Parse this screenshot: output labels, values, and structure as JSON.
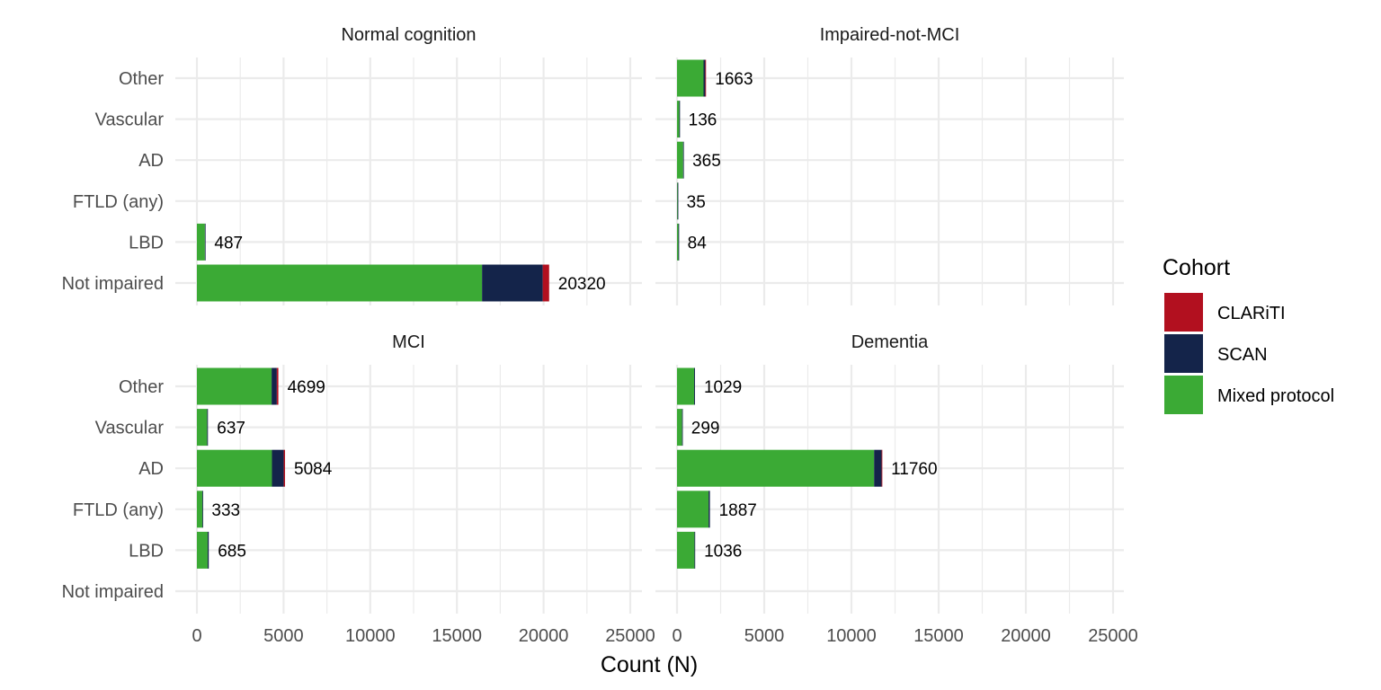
{
  "chart_data": {
    "type": "bar",
    "orientation": "horizontal",
    "stacked": true,
    "xlabel": "Count (N)",
    "ylabel": "",
    "xlim": [
      0,
      25000
    ],
    "x_ticks": [
      0,
      5000,
      10000,
      15000,
      20000,
      25000
    ],
    "grid": true,
    "legend": {
      "title": "Cohort",
      "position": "right",
      "entries": [
        {
          "name": "CLARiTI",
          "color": "#B2101F"
        },
        {
          "name": "SCAN",
          "color": "#14244A"
        },
        {
          "name": "Mixed protocol",
          "color": "#3BAA35"
        }
      ]
    },
    "categories": [
      "Other",
      "Vascular",
      "AD",
      "FTLD (any)",
      "LBD",
      "Not impaired"
    ],
    "panels": [
      {
        "title": "Normal cognition",
        "bars": [
          {
            "category": "Other",
            "label": "",
            "segments": [
              0,
              0,
              0
            ]
          },
          {
            "category": "Vascular",
            "label": "",
            "segments": [
              0,
              0,
              0
            ]
          },
          {
            "category": "AD",
            "label": "",
            "segments": [
              0,
              0,
              0
            ]
          },
          {
            "category": "FTLD (any)",
            "label": "",
            "segments": [
              0,
              0,
              0
            ]
          },
          {
            "category": "LBD",
            "label": "487",
            "segments": [
              460,
              27,
              0
            ]
          },
          {
            "category": "Not impaired",
            "label": "20320",
            "segments": [
              16450,
              3500,
              370
            ]
          }
        ]
      },
      {
        "title": "Impaired-not-MCI",
        "bars": [
          {
            "category": "Other",
            "label": "1663",
            "segments": [
              1520,
              100,
              43
            ]
          },
          {
            "category": "Vascular",
            "label": "136",
            "segments": [
              130,
              6,
              0
            ]
          },
          {
            "category": "AD",
            "label": "365",
            "segments": [
              350,
              15,
              0
            ]
          },
          {
            "category": "FTLD (any)",
            "label": "35",
            "segments": [
              33,
              2,
              0
            ]
          },
          {
            "category": "LBD",
            "label": "84",
            "segments": [
              80,
              4,
              0
            ]
          },
          {
            "category": "Not impaired",
            "label": "",
            "segments": [
              0,
              0,
              0
            ]
          }
        ]
      },
      {
        "title": "MCI",
        "bars": [
          {
            "category": "Other",
            "label": "4699",
            "segments": [
              4310,
              300,
              89
            ]
          },
          {
            "category": "Vascular",
            "label": "637",
            "segments": [
              590,
              47,
              0
            ]
          },
          {
            "category": "AD",
            "label": "5084",
            "segments": [
              4330,
              680,
              74
            ]
          },
          {
            "category": "FTLD (any)",
            "label": "333",
            "segments": [
              320,
              13,
              0
            ]
          },
          {
            "category": "LBD",
            "label": "685",
            "segments": [
              620,
              65,
              0
            ]
          },
          {
            "category": "Not impaired",
            "label": "",
            "segments": [
              0,
              0,
              0
            ]
          }
        ]
      },
      {
        "title": "Dementia",
        "bars": [
          {
            "category": "Other",
            "label": "1029",
            "segments": [
              980,
              49,
              0
            ]
          },
          {
            "category": "Vascular",
            "label": "299",
            "segments": [
              290,
              9,
              0
            ]
          },
          {
            "category": "AD",
            "label": "11760",
            "segments": [
              11300,
              430,
              30
            ]
          },
          {
            "category": "FTLD (any)",
            "label": "1887",
            "segments": [
              1810,
              77,
              0
            ]
          },
          {
            "category": "LBD",
            "label": "1036",
            "segments": [
              1000,
              36,
              0
            ]
          },
          {
            "category": "Not impaired",
            "label": "",
            "segments": [
              0,
              0,
              0
            ]
          }
        ]
      }
    ]
  }
}
